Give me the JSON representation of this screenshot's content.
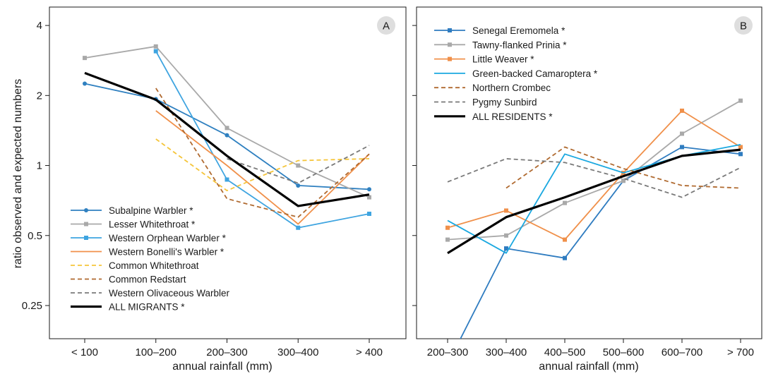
{
  "chart_data": [
    {
      "type": "line",
      "panel_label": "A",
      "xlabel": "annual rainfall (mm)",
      "ylabel": "ratio observed and expected numbers",
      "y_scale": "log2",
      "ylim": [
        0.18,
        4.8
      ],
      "yticks": [
        4,
        2,
        1,
        0.5,
        0.25
      ],
      "categories": [
        "< 100",
        "100–200",
        "200–300",
        "300–400",
        "> 400"
      ],
      "legend_position": "bottom-left",
      "series": [
        {
          "name": "Subalpine Warbler *",
          "color": "#2f80c0",
          "dash": "solid",
          "marker": "circle",
          "width": 1.8,
          "values": [
            2.25,
            1.93,
            1.35,
            0.82,
            0.79
          ]
        },
        {
          "name": "Lesser Whitethroat *",
          "color": "#a9a9a9",
          "dash": "solid",
          "marker": "square",
          "width": 1.8,
          "values": [
            2.9,
            3.25,
            1.45,
            1.0,
            0.73
          ]
        },
        {
          "name": "Western Orphean Warbler *",
          "color": "#3ea4e0",
          "dash": "solid",
          "marker": "square",
          "width": 1.8,
          "values": [
            null,
            3.1,
            0.87,
            0.54,
            0.62
          ]
        },
        {
          "name": "Western Bonelli's Warbler *",
          "color": "#f0904a",
          "dash": "solid",
          "marker": "none",
          "width": 1.8,
          "values": [
            null,
            1.72,
            1.0,
            0.56,
            1.12
          ]
        },
        {
          "name": "Common Whitethroat",
          "color": "#f5c53a",
          "dash": "dashed",
          "marker": "none",
          "width": 1.8,
          "values": [
            null,
            1.3,
            0.78,
            1.05,
            1.07
          ]
        },
        {
          "name": "Common Redstart",
          "color": "#b06a30",
          "dash": "dashed",
          "marker": "none",
          "width": 1.8,
          "values": [
            null,
            2.15,
            0.72,
            0.6,
            1.12
          ]
        },
        {
          "name": "Western Olivaceous Warbler",
          "color": "#7a7a7a",
          "dash": "dashed",
          "marker": "none",
          "width": 1.8,
          "values": [
            null,
            null,
            1.07,
            0.84,
            1.22
          ]
        },
        {
          "name": "ALL MIGRANTS *",
          "color": "#000000",
          "dash": "solid",
          "marker": "none",
          "width": 3.2,
          "values": [
            2.5,
            1.92,
            1.1,
            0.67,
            0.75
          ]
        }
      ]
    },
    {
      "type": "line",
      "panel_label": "B",
      "xlabel": "annual rainfall (mm)",
      "ylabel": "",
      "y_scale": "log2",
      "ylim": [
        0.18,
        4.8
      ],
      "yticks": [
        4,
        2,
        1,
        0.5,
        0.25
      ],
      "categories": [
        "200–300",
        "300–400",
        "400–500",
        "500–600",
        "600–700",
        "> 700"
      ],
      "legend_position": "top-left",
      "series": [
        {
          "name": "Senegal Eremomela *",
          "color": "#2f7cc0",
          "dash": "solid",
          "marker": "square",
          "width": 1.8,
          "values": [
            0.14,
            0.44,
            0.4,
            0.86,
            1.2,
            1.12
          ]
        },
        {
          "name": "Tawny-flanked Prinia *",
          "color": "#a9a9a9",
          "dash": "solid",
          "marker": "square",
          "width": 1.8,
          "values": [
            0.48,
            0.5,
            0.69,
            0.86,
            1.37,
            1.9
          ]
        },
        {
          "name": "Little Weaver *",
          "color": "#f0904a",
          "dash": "solid",
          "marker": "square",
          "width": 1.8,
          "values": [
            0.54,
            0.64,
            0.48,
            0.93,
            1.72,
            1.2
          ]
        },
        {
          "name": "Green-backed Camaroptera *",
          "color": "#1aa8e0",
          "dash": "solid",
          "marker": "none",
          "width": 1.8,
          "values": [
            0.58,
            0.42,
            1.12,
            0.93,
            1.1,
            1.23
          ]
        },
        {
          "name": "Northern Crombec",
          "color": "#b06a30",
          "dash": "dashed",
          "marker": "none",
          "width": 1.8,
          "values": [
            null,
            0.8,
            1.2,
            0.97,
            0.82,
            0.8
          ]
        },
        {
          "name": "Pygmy Sunbird",
          "color": "#7a7a7a",
          "dash": "dashed",
          "marker": "none",
          "width": 1.8,
          "values": [
            0.85,
            1.07,
            1.03,
            0.88,
            0.73,
            0.98
          ]
        },
        {
          "name": "ALL RESIDENTS *",
          "color": "#000000",
          "dash": "solid",
          "marker": "none",
          "width": 3.2,
          "values": [
            0.42,
            0.6,
            0.73,
            0.9,
            1.1,
            1.17
          ]
        }
      ]
    }
  ]
}
